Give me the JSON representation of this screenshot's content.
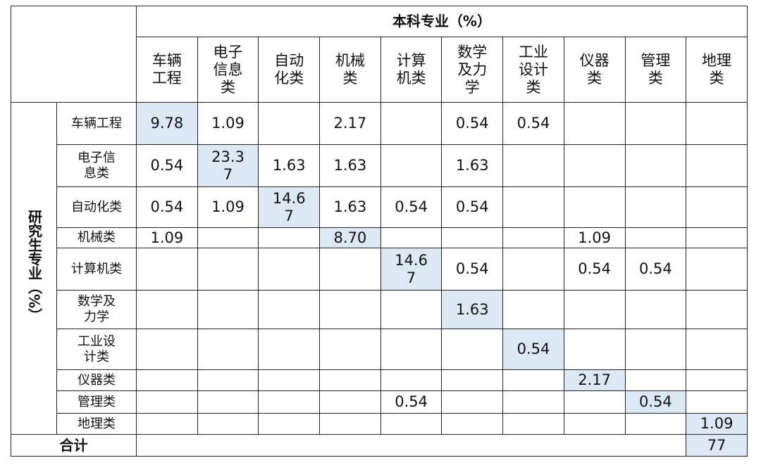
{
  "header": {
    "title": "本科专业（%）"
  },
  "columns": [
    "车辆工程",
    "电子信息类",
    "自动化类",
    "机械类",
    "计算机类",
    "数学及力学",
    "工业设计类",
    "仪器类",
    "管理类",
    "地理类"
  ],
  "row_group": "研究生专业（%）",
  "rows": [
    {
      "label": "车辆工程",
      "cells": [
        "9.78",
        "1.09",
        null,
        "2.17",
        null,
        "0.54",
        "0.54",
        null,
        null,
        null
      ]
    },
    {
      "label": "电子信息类",
      "cells": [
        "0.54",
        "23.37",
        "1.63",
        "1.63",
        null,
        "1.63",
        null,
        null,
        null,
        null
      ]
    },
    {
      "label": "自动化类",
      "cells": [
        "0.54",
        "1.09",
        "14.67",
        "1.63",
        "0.54",
        "0.54",
        null,
        null,
        null,
        null
      ]
    },
    {
      "label": "机械类",
      "cells": [
        "1.09",
        null,
        null,
        "8.70",
        null,
        null,
        null,
        "1.09",
        null,
        null
      ]
    },
    {
      "label": "计算机类",
      "cells": [
        null,
        null,
        null,
        null,
        "14.67",
        "0.54",
        null,
        "0.54",
        "0.54",
        null
      ]
    },
    {
      "label": "数学及力学",
      "cells": [
        null,
        null,
        null,
        null,
        null,
        "1.63",
        null,
        null,
        null,
        null
      ]
    },
    {
      "label": "工业设计类",
      "cells": [
        null,
        null,
        null,
        null,
        null,
        null,
        "0.54",
        null,
        null,
        null
      ]
    },
    {
      "label": "仪器类",
      "cells": [
        null,
        null,
        null,
        null,
        null,
        null,
        null,
        "2.17",
        null,
        null
      ]
    },
    {
      "label": "管理类",
      "cells": [
        null,
        null,
        null,
        null,
        "0.54",
        null,
        null,
        null,
        "0.54",
        null
      ]
    },
    {
      "label": "地理类",
      "cells": [
        null,
        null,
        null,
        null,
        null,
        null,
        null,
        null,
        null,
        "1.09"
      ]
    }
  ],
  "total": {
    "label": "合计",
    "value": "77"
  }
}
